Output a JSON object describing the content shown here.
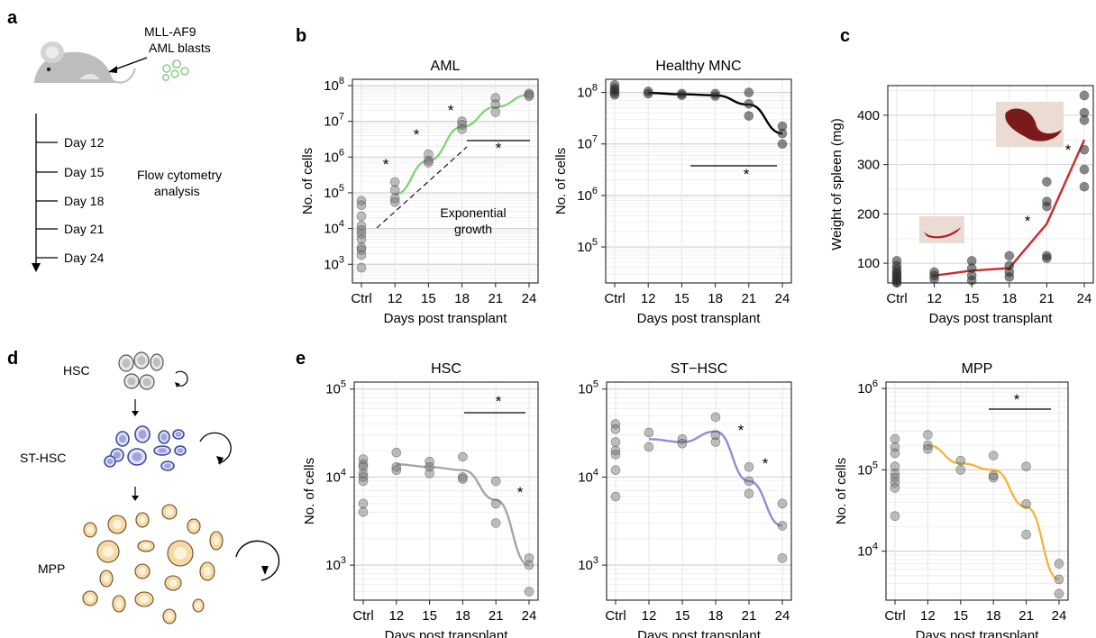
{
  "panels": {
    "a": "a",
    "b": "b",
    "c": "c",
    "d": "d",
    "e": "e"
  },
  "schematic_a": {
    "cell_line": "MLL-AF9",
    "cell_type": "AML blasts",
    "timepoints": [
      "Day 12",
      "Day 15",
      "Day 18",
      "Day 21",
      "Day 24"
    ],
    "analysis_line1": "Flow cytometry",
    "analysis_line2": "analysis"
  },
  "schematic_d": {
    "stages": [
      "HSC",
      "ST-HSC",
      "MPP"
    ],
    "colors": {
      "HSC": "#bdbdbd",
      "ST-HSC": "#3f4aa0",
      "MPP": "#f4c06a"
    }
  },
  "common": {
    "xlabel": "Days post transplant",
    "xcats": [
      "Ctrl",
      "12",
      "15",
      "18",
      "21",
      "24"
    ],
    "star": "*"
  },
  "chart_data": [
    {
      "id": "aml",
      "type": "scatter",
      "title": "AML",
      "ylabel": "No. of cells",
      "yscale": "log",
      "ylim": [
        300,
        150000000
      ],
      "yticks": [
        3,
        4,
        5,
        6,
        7,
        8
      ],
      "color": "#86d27e",
      "points": {
        "Ctrl": [
          60000,
          45000,
          22000,
          12000,
          9000,
          7000,
          5000,
          3000,
          2500,
          1800,
          800
        ],
        "12": [
          200000,
          120000,
          70000,
          55000
        ],
        "15": [
          1200000,
          800000,
          700000
        ],
        "18": [
          10000000,
          8000000,
          6000000
        ],
        "21": [
          45000000,
          30000000,
          18000000
        ],
        "24": [
          60000000,
          55000000,
          50000000
        ]
      },
      "trend": {
        "x": [
          "12",
          "15",
          "18",
          "21",
          "24"
        ],
        "y": [
          90000,
          800000,
          7000000,
          25000000,
          55000000
        ]
      },
      "annotation": {
        "line1": "Exponential",
        "line2": "growth"
      },
      "stars": 4
    },
    {
      "id": "mnc",
      "type": "scatter",
      "title": "Healthy MNC",
      "ylabel": "No. of cells",
      "yscale": "log",
      "ylim": [
        20000,
        180000000
      ],
      "yticks": [
        5,
        6,
        7,
        8
      ],
      "color": "#000000",
      "points": {
        "Ctrl": [
          140000000,
          120000000,
          110000000,
          100000000,
          90000000
        ],
        "12": [
          105000000,
          95000000
        ],
        "15": [
          95000000,
          88000000
        ],
        "18": [
          95000000,
          85000000
        ],
        "21": [
          100000000,
          60000000,
          35000000
        ],
        "24": [
          22000000,
          16000000,
          10000000
        ]
      },
      "trend": {
        "x": [
          "12",
          "15",
          "18",
          "21",
          "24"
        ],
        "y": [
          98000000,
          92000000,
          88000000,
          58000000,
          16000000
        ]
      },
      "stars": 1
    },
    {
      "id": "spleen",
      "type": "scatter",
      "title": "",
      "ylabel": "Weight of spleen (mg)",
      "yscale": "linear",
      "ylim": [
        60,
        460
      ],
      "yticks": [
        100,
        200,
        300,
        400
      ],
      "color": "#cc2b2b",
      "points": {
        "Ctrl": [
          105,
          95,
          88,
          82,
          78,
          74,
          70,
          66,
          63,
          60
        ],
        "12": [
          82,
          75,
          68
        ],
        "15": [
          105,
          90,
          75,
          65
        ],
        "18": [
          115,
          95,
          82,
          72
        ],
        "21": [
          265,
          225,
          215,
          115,
          110
        ],
        "24": [
          440,
          405,
          390,
          330,
          290,
          255
        ]
      },
      "trend": {
        "x": [
          "12",
          "15",
          "18",
          "21",
          "24"
        ],
        "y": [
          75,
          85,
          90,
          180,
          350
        ]
      },
      "stars": 2
    },
    {
      "id": "hsc",
      "type": "scatter",
      "title": "HSC",
      "ylabel": "No. of cells",
      "yscale": "log",
      "ylim": [
        400,
        120000
      ],
      "yticks": [
        3,
        4,
        5
      ],
      "color": "#a6a6a6",
      "points": {
        "Ctrl": [
          16000,
          14000,
          13000,
          11000,
          10000,
          9000,
          5000,
          4000
        ],
        "12": [
          19000,
          13000,
          12000
        ],
        "15": [
          15000,
          13000,
          11000
        ],
        "18": [
          17000,
          10000,
          9500
        ],
        "21": [
          9000,
          5000,
          3000
        ],
        "24": [
          1200,
          1000,
          500
        ]
      },
      "trend": {
        "x": [
          "12",
          "15",
          "18",
          "21",
          "24"
        ],
        "y": [
          14000,
          13000,
          12000,
          5500,
          1000
        ]
      },
      "stars": 2
    },
    {
      "id": "sthsc",
      "type": "scatter",
      "title": "ST−HSC",
      "ylabel": "",
      "yscale": "log",
      "ylim": [
        400,
        120000
      ],
      "yticks": [
        3,
        4,
        5
      ],
      "color": "#8b8fd6",
      "points": {
        "Ctrl": [
          40000,
          35000,
          25000,
          20000,
          18000,
          12000,
          6000
        ],
        "12": [
          32000,
          22000
        ],
        "15": [
          27000,
          24000
        ],
        "18": [
          48000,
          30000,
          25000
        ],
        "21": [
          13000,
          9000,
          6500
        ],
        "24": [
          5000,
          2800,
          1200
        ]
      },
      "trend": {
        "x": [
          "12",
          "15",
          "18",
          "21",
          "24"
        ],
        "y": [
          27000,
          25000,
          33000,
          9000,
          2800
        ]
      },
      "stars": 2
    },
    {
      "id": "mpp",
      "type": "scatter",
      "title": "MPP",
      "ylabel": "No. of cells",
      "yscale": "log",
      "ylim": [
        2500,
        1200000
      ],
      "yticks": [
        4,
        5,
        6
      ],
      "color": "#f3b63d",
      "points": {
        "Ctrl": [
          240000,
          190000,
          160000,
          110000,
          90000,
          80000,
          70000,
          60000,
          27000
        ],
        "12": [
          270000,
          200000,
          180000
        ],
        "15": [
          130000,
          100000
        ],
        "18": [
          150000,
          85000,
          80000
        ],
        "21": [
          110000,
          38000,
          16000
        ],
        "24": [
          7000,
          4500,
          3000
        ]
      },
      "trend": {
        "x": [
          "12",
          "15",
          "18",
          "21",
          "24"
        ],
        "y": [
          200000,
          120000,
          100000,
          35000,
          4500
        ]
      },
      "stars": 1
    }
  ]
}
